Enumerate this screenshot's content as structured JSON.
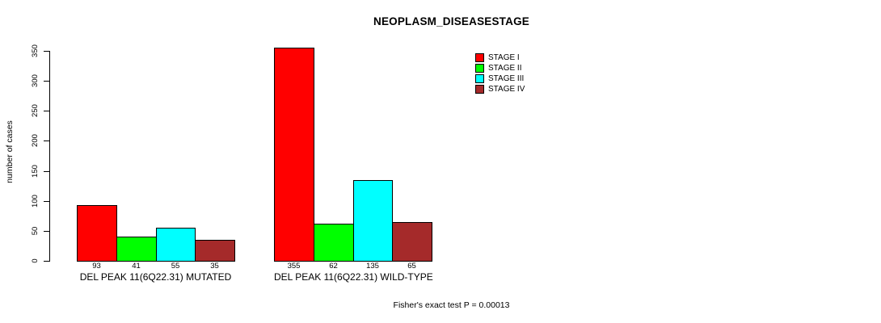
{
  "chart_data": {
    "type": "bar",
    "title": "NEOPLASM_DISEASESTAGE",
    "ylabel": "number of cases",
    "xlabel": "",
    "ylim": [
      0,
      350
    ],
    "yticks": [
      0,
      50,
      100,
      150,
      200,
      250,
      300,
      350
    ],
    "grid": false,
    "background_color": "#FFFFFF",
    "axis_color": "#000000",
    "bar_border_color": "#000000",
    "legend_position": "top-right-inside",
    "categories": [
      "DEL PEAK 11(6Q22.31) MUTATED",
      "DEL PEAK 11(6Q22.31) WILD-TYPE"
    ],
    "series": [
      {
        "name": "STAGE I",
        "color": "#FF0000",
        "values": [
          93,
          355
        ]
      },
      {
        "name": "STAGE II",
        "color": "#00FF00",
        "values": [
          41,
          62
        ]
      },
      {
        "name": "STAGE III",
        "color": "#00FFFF",
        "values": [
          55,
          135
        ]
      },
      {
        "name": "STAGE IV",
        "color": "#A52A2A",
        "values": [
          35,
          65
        ]
      }
    ],
    "value_labels_shown": true,
    "annotation": "Fisher's exact test P = 0.00013"
  }
}
